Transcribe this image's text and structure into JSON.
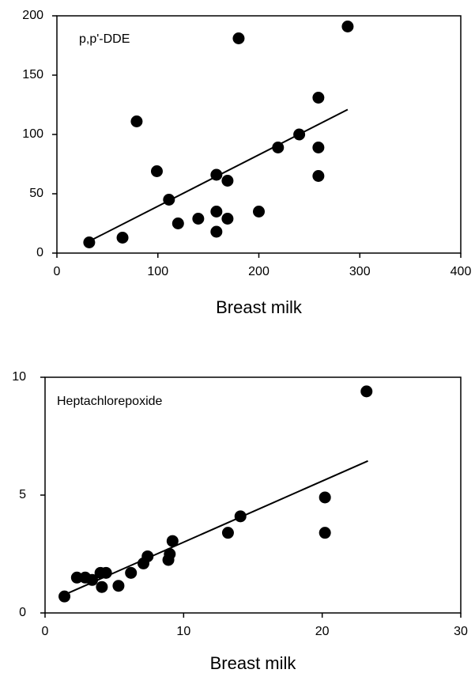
{
  "chart_data": [
    {
      "type": "scatter",
      "annotation": "p,p'-DDE",
      "x_label": "Breast milk",
      "x": [
        32,
        65,
        79,
        99,
        111,
        120,
        140,
        158,
        158,
        158,
        169,
        169,
        180,
        200,
        219,
        240,
        259,
        259,
        259,
        288
      ],
      "y": [
        9,
        13,
        111,
        69,
        45,
        25,
        29,
        66,
        35,
        18,
        61,
        29,
        181,
        35,
        89,
        100,
        131,
        89,
        65,
        191
      ],
      "trendline": {
        "x": [
          32,
          288
        ],
        "y": [
          10,
          121
        ]
      },
      "color": "#000000",
      "xlim": [
        0,
        400
      ],
      "xticks": [
        0,
        100,
        200,
        300,
        400
      ],
      "ylim": [
        0,
        200
      ],
      "yticks": [
        0,
        50,
        100,
        150,
        200
      ]
    },
    {
      "type": "scatter",
      "annotation": "Heptachlorepoxide",
      "x_label": "Breast milk",
      "x": [
        1.4,
        2.3,
        2.9,
        3.4,
        4.0,
        4.4,
        4.1,
        5.3,
        6.2,
        7.1,
        7.4,
        8.9,
        9.0,
        9.2,
        13.2,
        14.1,
        20.2,
        20.2,
        23.2
      ],
      "y": [
        0.7,
        1.5,
        1.5,
        1.4,
        1.7,
        1.7,
        1.1,
        1.15,
        1.7,
        2.1,
        2.4,
        2.25,
        2.5,
        3.05,
        3.4,
        4.1,
        4.9,
        3.4,
        9.4
      ],
      "trendline": {
        "x": [
          1.0,
          23.3
        ],
        "y": [
          0.67,
          6.45
        ]
      },
      "color": "#000000",
      "xlim": [
        0,
        30
      ],
      "xticks": [
        0,
        10,
        20,
        30
      ],
      "ylim": [
        0,
        10
      ],
      "yticks": [
        0,
        5,
        10
      ]
    }
  ]
}
